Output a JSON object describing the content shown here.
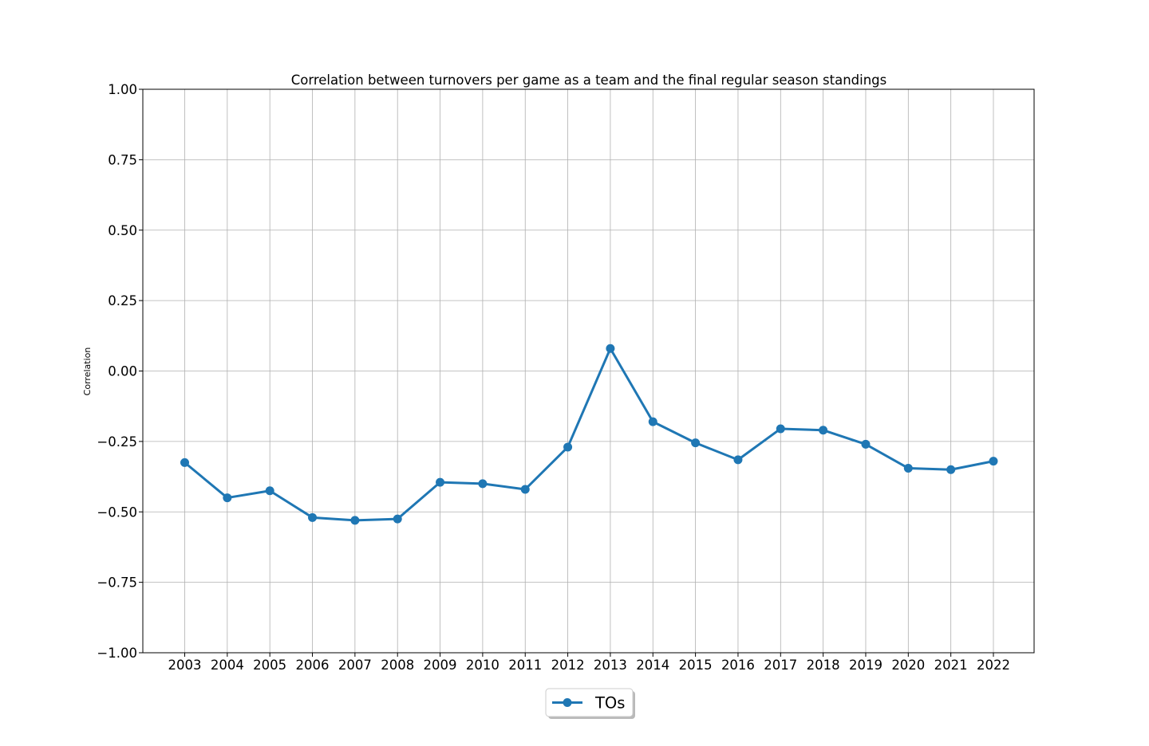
{
  "chart_data": {
    "type": "line",
    "title": "Correlation between turnovers per game as a team and the final regular season standings",
    "xlabel": "",
    "ylabel": "Correlation",
    "categories": [
      "2003",
      "2004",
      "2005",
      "2006",
      "2007",
      "2008",
      "2009",
      "2010",
      "2011",
      "2012",
      "2013",
      "2014",
      "2015",
      "2016",
      "2017",
      "2018",
      "2019",
      "2020",
      "2021",
      "2022"
    ],
    "series": [
      {
        "name": "TOs",
        "color": "#1f77b4",
        "marker": "circle",
        "values": [
          -0.325,
          -0.45,
          -0.425,
          -0.52,
          -0.53,
          -0.525,
          -0.395,
          -0.4,
          -0.42,
          -0.27,
          0.08,
          -0.18,
          -0.255,
          -0.315,
          -0.205,
          -0.21,
          -0.26,
          -0.345,
          -0.35,
          -0.32
        ]
      }
    ],
    "ylim": [
      -1.0,
      1.0
    ],
    "yticks": [
      "1.00",
      "0.75",
      "0.50",
      "0.25",
      "0.00",
      "−0.25",
      "−0.50",
      "−0.75",
      "−1.00"
    ],
    "ytick_values": [
      1.0,
      0.75,
      0.5,
      0.25,
      0.0,
      -0.25,
      -0.5,
      -0.75,
      -1.0
    ],
    "grid": true,
    "legend": {
      "position": "bottom-center",
      "entries": [
        "TOs"
      ]
    },
    "colors": {
      "series": "#1f77b4",
      "grid": "#b0b0b0",
      "axis": "#000000"
    }
  }
}
